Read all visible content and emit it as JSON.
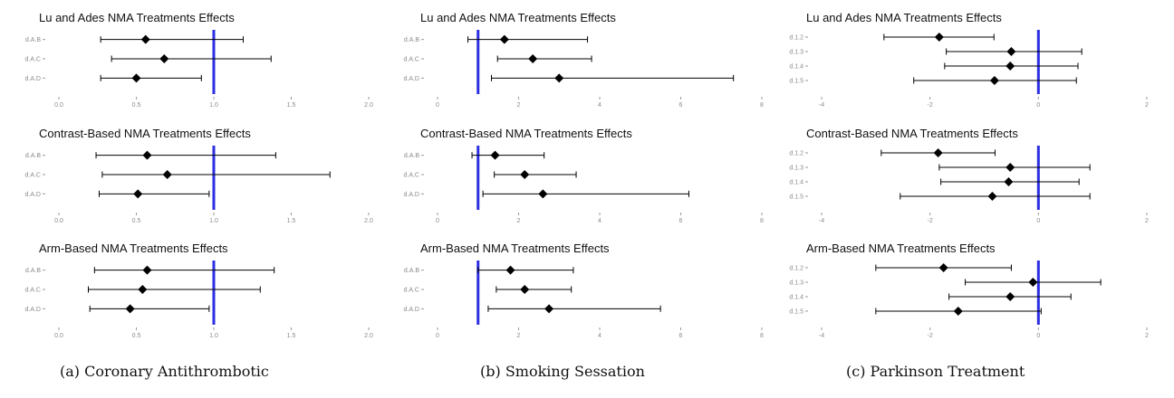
{
  "panel_captions": [
    "(a) Coronary Antithrombotic",
    "(b) Smoking Sessation",
    "(c) Parkinson Treatment"
  ],
  "colors": {
    "reference_line": "#2b2fe0",
    "point": "#000000",
    "interval": "#000000",
    "tick_text": "#8a8a8a"
  },
  "chart_data": [
    {
      "type": "scatter",
      "title": "Lu and Ades NMA Treatments Effects",
      "categories": [
        "d.A.B",
        "d.A.C",
        "d.A.D"
      ],
      "xticks": [
        "0.0",
        "0.5",
        "1.0",
        "1.5",
        "2.0"
      ],
      "xlim": [
        0,
        2
      ],
      "reference_x": 1,
      "series": [
        {
          "points": [
            {
              "label": "d.A.B",
              "estimate": 0.56,
              "lower": 0.27,
              "upper": 1.19
            },
            {
              "label": "d.A.C",
              "estimate": 0.68,
              "lower": 0.34,
              "upper": 1.37
            },
            {
              "label": "d.A.D",
              "estimate": 0.5,
              "lower": 0.27,
              "upper": 0.92
            }
          ]
        }
      ]
    },
    {
      "type": "scatter",
      "title": "Lu and Ades NMA Treatments Effects",
      "categories": [
        "d.A.B",
        "d.A.C",
        "d.A.D"
      ],
      "xticks": [
        "0",
        "2",
        "4",
        "6",
        "8"
      ],
      "xlim": [
        0,
        8
      ],
      "reference_x": 1,
      "series": [
        {
          "points": [
            {
              "label": "d.A.B",
              "estimate": 1.65,
              "lower": 0.75,
              "upper": 3.7
            },
            {
              "label": "d.A.C",
              "estimate": 2.35,
              "lower": 1.48,
              "upper": 3.8
            },
            {
              "label": "d.A.D",
              "estimate": 3.0,
              "lower": 1.33,
              "upper": 7.3
            }
          ]
        }
      ]
    },
    {
      "type": "scatter",
      "title": "Lu and Ades NMA Treatments Effects",
      "categories": [
        "d.1.2",
        "d.1.3",
        "d.1.4",
        "d.1.5"
      ],
      "xticks": [
        "-4",
        "-2",
        "0",
        "2"
      ],
      "xlim": [
        -4,
        2
      ],
      "reference_x": 0,
      "series": [
        {
          "points": [
            {
              "label": "d.1.2",
              "estimate": -1.83,
              "lower": -2.85,
              "upper": -0.82
            },
            {
              "label": "d.1.3",
              "estimate": -0.5,
              "lower": -1.7,
              "upper": 0.8
            },
            {
              "label": "d.1.4",
              "estimate": -0.52,
              "lower": -1.73,
              "upper": 0.73
            },
            {
              "label": "d.1.5",
              "estimate": -0.81,
              "lower": -2.3,
              "upper": 0.7
            }
          ]
        }
      ]
    },
    {
      "type": "scatter",
      "title": "Contrast-Based NMA Treatments Effects",
      "categories": [
        "d.A.B",
        "d.A.C",
        "d.A.D"
      ],
      "xticks": [
        "0.0",
        "0.5",
        "1.0",
        "1.5",
        "2.0"
      ],
      "xlim": [
        0,
        2
      ],
      "reference_x": 1,
      "series": [
        {
          "points": [
            {
              "label": "d.A.B",
              "estimate": 0.57,
              "lower": 0.24,
              "upper": 1.4
            },
            {
              "label": "d.A.C",
              "estimate": 0.7,
              "lower": 0.28,
              "upper": 1.75
            },
            {
              "label": "d.A.D",
              "estimate": 0.51,
              "lower": 0.26,
              "upper": 0.97
            }
          ]
        }
      ]
    },
    {
      "type": "scatter",
      "title": "Contrast-Based NMA Treatments Effects",
      "categories": [
        "d.A.B",
        "d.A.C",
        "d.A.D"
      ],
      "xticks": [
        "0",
        "2",
        "4",
        "6",
        "8"
      ],
      "xlim": [
        0,
        8
      ],
      "reference_x": 1,
      "series": [
        {
          "points": [
            {
              "label": "d.A.B",
              "estimate": 1.42,
              "lower": 0.85,
              "upper": 2.63
            },
            {
              "label": "d.A.C",
              "estimate": 2.15,
              "lower": 1.4,
              "upper": 3.42
            },
            {
              "label": "d.A.D",
              "estimate": 2.6,
              "lower": 1.12,
              "upper": 6.2
            }
          ]
        }
      ]
    },
    {
      "type": "scatter",
      "title": "Contrast-Based NMA Treatments Effects",
      "categories": [
        "d.1.2",
        "d.1.3",
        "d.1.4",
        "d.1.5"
      ],
      "xticks": [
        "-4",
        "-2",
        "0",
        "2"
      ],
      "xlim": [
        -4,
        2
      ],
      "reference_x": 0,
      "series": [
        {
          "points": [
            {
              "label": "d.1.2",
              "estimate": -1.85,
              "lower": -2.9,
              "upper": -0.8
            },
            {
              "label": "d.1.3",
              "estimate": -0.52,
              "lower": -1.83,
              "upper": 0.95
            },
            {
              "label": "d.1.4",
              "estimate": -0.55,
              "lower": -1.8,
              "upper": 0.75
            },
            {
              "label": "d.1.5",
              "estimate": -0.85,
              "lower": -2.55,
              "upper": 0.95
            }
          ]
        }
      ]
    },
    {
      "type": "scatter",
      "title": "Arm-Based NMA Treatments Effects",
      "categories": [
        "d.A.B",
        "d.A.C",
        "d.A.D"
      ],
      "xticks": [
        "0.0",
        "0.5",
        "1.0",
        "1.5",
        "2.0"
      ],
      "xlim": [
        0,
        2
      ],
      "reference_x": 1,
      "series": [
        {
          "points": [
            {
              "label": "d.A.B",
              "estimate": 0.57,
              "lower": 0.23,
              "upper": 1.39
            },
            {
              "label": "d.A.C",
              "estimate": 0.54,
              "lower": 0.19,
              "upper": 1.3
            },
            {
              "label": "d.A.D",
              "estimate": 0.46,
              "lower": 0.2,
              "upper": 0.97
            }
          ]
        }
      ]
    },
    {
      "type": "scatter",
      "title": "Arm-Based NMA Treatments Effects",
      "categories": [
        "d.A.B",
        "d.A.C",
        "d.A.D"
      ],
      "xticks": [
        "0",
        "2",
        "4",
        "6",
        "8"
      ],
      "xlim": [
        0,
        8
      ],
      "reference_x": 1,
      "series": [
        {
          "points": [
            {
              "label": "d.A.B",
              "estimate": 1.8,
              "lower": 1.0,
              "upper": 3.35
            },
            {
              "label": "d.A.C",
              "estimate": 2.15,
              "lower": 1.45,
              "upper": 3.3
            },
            {
              "label": "d.A.D",
              "estimate": 2.75,
              "lower": 1.25,
              "upper": 5.5
            }
          ]
        }
      ]
    },
    {
      "type": "scatter",
      "title": "Arm-Based NMA Treatments Effects",
      "categories": [
        "d.1.2",
        "d.1.3",
        "d.1.4",
        "d.1.5"
      ],
      "xticks": [
        "-4",
        "-2",
        "0",
        "2"
      ],
      "xlim": [
        -4,
        2
      ],
      "reference_x": 0,
      "series": [
        {
          "points": [
            {
              "label": "d.1.2",
              "estimate": -1.75,
              "lower": -3.0,
              "upper": -0.5
            },
            {
              "label": "d.1.3",
              "estimate": -0.1,
              "lower": -1.35,
              "upper": 1.15
            },
            {
              "label": "d.1.4",
              "estimate": -0.52,
              "lower": -1.65,
              "upper": 0.6
            },
            {
              "label": "d.1.5",
              "estimate": -1.48,
              "lower": -3.0,
              "upper": 0.05
            }
          ]
        }
      ]
    }
  ]
}
